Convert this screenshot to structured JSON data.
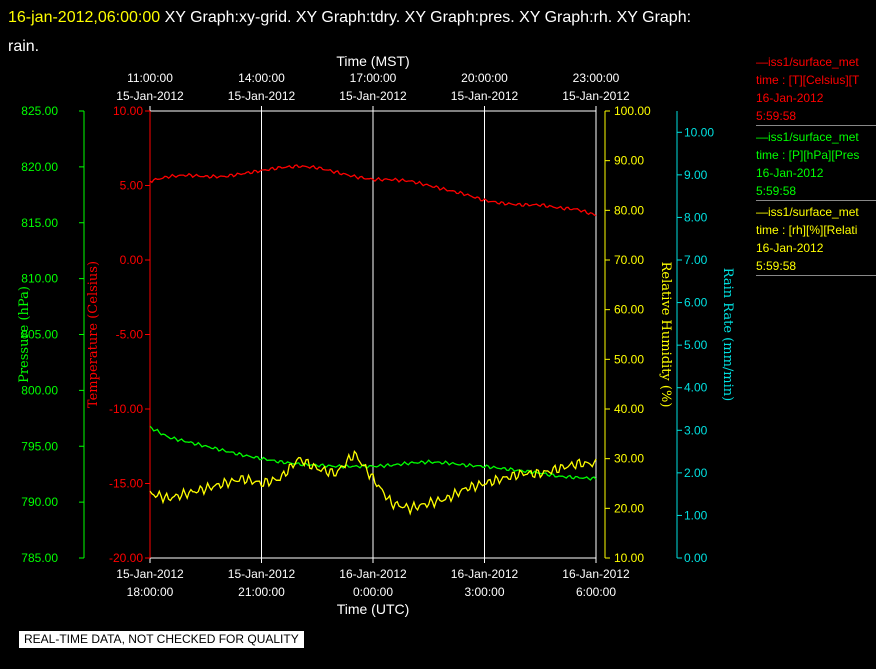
{
  "header": {
    "timestamp": "16-jan-2012,06:00:00",
    "graphs_line1": "  XY Graph:xy-grid.  XY Graph:tdry.  XY Graph:pres.  XY Graph:rh.  XY Graph:",
    "graphs_line2": "rain."
  },
  "colors": {
    "background": "#000000",
    "temperature": "#ff0000",
    "pressure": "#00ff00",
    "humidity": "#ffff00",
    "rain": "#00e0e0",
    "grid": "#ffffff"
  },
  "legend": [
    {
      "line1": "—iss1/surface_met",
      "line2": "time : [T][Celsius][T",
      "line3": "16-Jan-2012",
      "line4": "5:59:58",
      "color": "#ff0000"
    },
    {
      "line1": "—iss1/surface_met",
      "line2": "time : [P][hPa][Pres",
      "line3": "16-Jan-2012",
      "line4": "5:59:58",
      "color": "#00ff00"
    },
    {
      "line1": "—iss1/surface_met",
      "line2": "time : [rh][%][Relati",
      "line3": "16-Jan-2012",
      "line4": "5:59:58",
      "color": "#ffff00"
    }
  ],
  "footer": {
    "quality_note": "REAL-TIME DATA, NOT CHECKED FOR QUALITY"
  },
  "chart_data": {
    "type": "line",
    "title": "",
    "top_axis": {
      "label": "Time (MST)",
      "ticks": [
        {
          "time": "11:00:00",
          "date": "15-Jan-2012"
        },
        {
          "time": "14:00:00",
          "date": "15-Jan-2012"
        },
        {
          "time": "17:00:00",
          "date": "15-Jan-2012"
        },
        {
          "time": "20:00:00",
          "date": "15-Jan-2012"
        },
        {
          "time": "23:00:00",
          "date": "15-Jan-2012"
        }
      ]
    },
    "bottom_axis": {
      "label": "Time (UTC)",
      "ticks": [
        {
          "date": "15-Jan-2012",
          "time": "18:00:00"
        },
        {
          "date": "15-Jan-2012",
          "time": "21:00:00"
        },
        {
          "date": "16-Jan-2012",
          "time": "0:00:00"
        },
        {
          "date": "16-Jan-2012",
          "time": "3:00:00"
        },
        {
          "date": "16-Jan-2012",
          "time": "6:00:00"
        }
      ]
    },
    "x_hours_utc": [
      0,
      0.5,
      1,
      1.5,
      2,
      2.5,
      3,
      3.5,
      4,
      4.5,
      5,
      5.5,
      6,
      6.5,
      7,
      7.5,
      8,
      8.5,
      9,
      9.5,
      10,
      10.5,
      11,
      11.5,
      12
    ],
    "xlim": [
      0,
      12
    ],
    "axes": [
      {
        "id": "pres",
        "label": "Pressure (hPa)",
        "ylim": [
          785,
          825
        ],
        "ticks": [
          "825.00",
          "820.00",
          "815.00",
          "810.00",
          "805.00",
          "800.00",
          "795.00",
          "790.00",
          "785.00"
        ],
        "side": "left-outer",
        "color": "#00ff00"
      },
      {
        "id": "tdry",
        "label": "Temperature (Celsius)",
        "ylim": [
          -20,
          10
        ],
        "ticks": [
          "10.00",
          "5.00",
          "0.00",
          "-5.00",
          "-10.00",
          "-15.00",
          "-20.00"
        ],
        "side": "left-inner",
        "color": "#ff0000"
      },
      {
        "id": "rh",
        "label": "Relative Humidity (%)",
        "ylim": [
          10,
          100
        ],
        "ticks": [
          "100.00",
          "90.00",
          "80.00",
          "70.00",
          "60.00",
          "50.00",
          "40.00",
          "30.00",
          "20.00",
          "10.00"
        ],
        "side": "right-inner",
        "color": "#ffff00"
      },
      {
        "id": "rain",
        "label": "Rain Rate (mm/min)",
        "ylim": [
          0,
          10.5
        ],
        "ticks": [
          "10.00",
          "9.00",
          "8.00",
          "7.00",
          "6.00",
          "5.00",
          "4.00",
          "3.00",
          "2.00",
          "1.00",
          "0.00"
        ],
        "side": "right-outer",
        "color": "#00e0e0"
      }
    ],
    "series": [
      {
        "axis": "tdry",
        "color": "#ff0000",
        "values": [
          5.3,
          5.6,
          5.7,
          5.6,
          5.6,
          5.8,
          6.0,
          6.2,
          6.3,
          6.2,
          5.9,
          5.6,
          5.4,
          5.4,
          5.3,
          5.0,
          4.7,
          4.4,
          4.0,
          3.8,
          3.7,
          3.7,
          3.5,
          3.4,
          3.0
        ]
      },
      {
        "axis": "pres",
        "color": "#00ff00",
        "values": [
          796.7,
          795.8,
          795.4,
          795.0,
          794.6,
          794.2,
          793.9,
          793.6,
          793.4,
          793.3,
          793.2,
          793.2,
          793.2,
          793.3,
          793.5,
          793.6,
          793.5,
          793.3,
          793.2,
          793.0,
          792.8,
          792.6,
          792.3,
          792.2,
          792.1
        ]
      },
      {
        "axis": "rh",
        "color": "#ffff00",
        "values": [
          23,
          22,
          23,
          24,
          25,
          26,
          25,
          26,
          30,
          28,
          27,
          31,
          26,
          21,
          20,
          21,
          22,
          24,
          25,
          26,
          27,
          27,
          28,
          29,
          29
        ]
      }
    ]
  }
}
